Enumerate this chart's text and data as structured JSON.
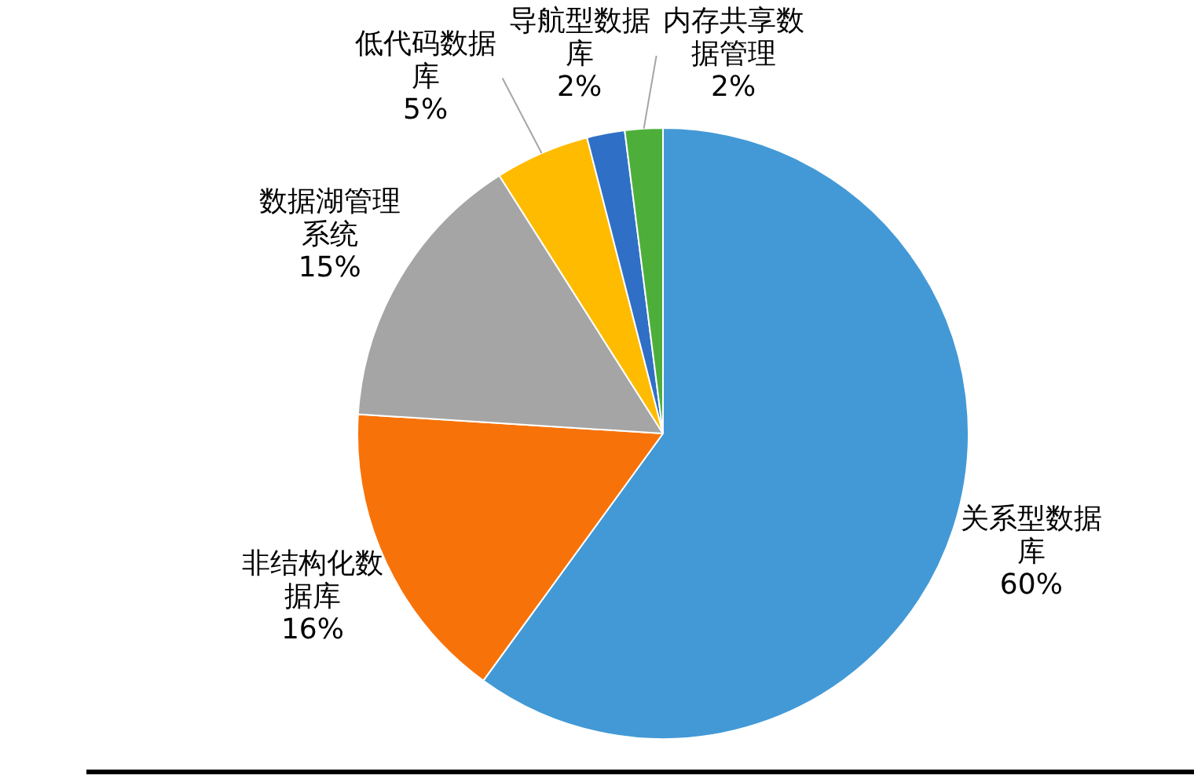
{
  "chart_data": {
    "type": "pie",
    "categories": [
      "关系型数据库",
      "非结构化数据库",
      "数据湖管理系统",
      "低代码数据库",
      "导航型数据库",
      "内存共享数据管理"
    ],
    "values": [
      60,
      16,
      15,
      5,
      2,
      2
    ],
    "colors": [
      "#4399d6",
      "#f7730a",
      "#a5a5a5",
      "#ffbb00",
      "#2f6fc6",
      "#4daf3a"
    ],
    "value_labels": [
      "60%",
      "16%",
      "15%",
      "5%",
      "2%",
      "2%"
    ],
    "legend": false
  }
}
